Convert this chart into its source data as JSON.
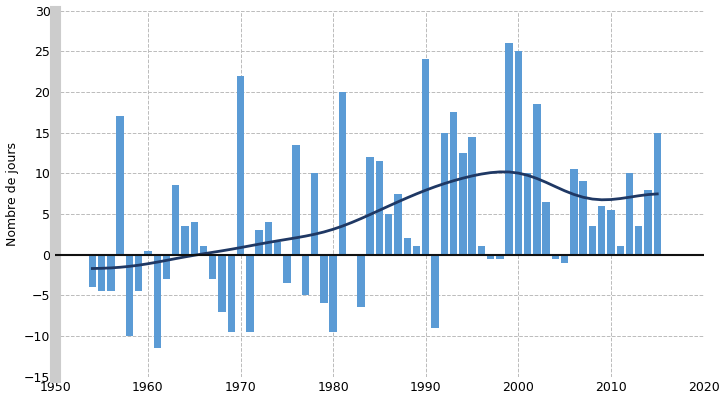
{
  "years": [
    1954,
    1955,
    1956,
    1957,
    1958,
    1959,
    1960,
    1961,
    1962,
    1963,
    1964,
    1965,
    1966,
    1967,
    1968,
    1969,
    1970,
    1971,
    1972,
    1973,
    1974,
    1975,
    1976,
    1977,
    1978,
    1979,
    1980,
    1981,
    1982,
    1983,
    1984,
    1985,
    1986,
    1987,
    1988,
    1989,
    1990,
    1991,
    1992,
    1993,
    1994,
    1995,
    1996,
    1997,
    1998,
    1999,
    2000,
    2001,
    2002,
    2003,
    2004,
    2005,
    2006,
    2007,
    2008,
    2009,
    2010,
    2011,
    2012,
    2013,
    2014,
    2015
  ],
  "values": [
    -4.0,
    -4.5,
    -4.5,
    17.0,
    -10.0,
    -4.5,
    0.5,
    -11.5,
    -3.0,
    8.5,
    3.5,
    4.0,
    1.0,
    -3.0,
    -7.0,
    -9.5,
    22.0,
    -9.5,
    3.0,
    4.0,
    1.5,
    -3.5,
    13.5,
    -5.0,
    10.0,
    -6.0,
    -9.5,
    20.0,
    0.0,
    -6.5,
    12.0,
    11.5,
    5.0,
    7.5,
    2.0,
    1.0,
    24.0,
    -9.0,
    15.0,
    17.5,
    12.5,
    14.5,
    1.0,
    -0.5,
    -0.5,
    26.0,
    25.0,
    10.0,
    18.5,
    6.5,
    -0.5,
    -1.0,
    10.5,
    9.0,
    3.5,
    6.0,
    5.5,
    1.0,
    10.0,
    3.5,
    8.0,
    15.0
  ],
  "bar_color": "#5b9bd5",
  "line_color": "#1f3864",
  "zero_line_color": "#111111",
  "ylabel": "Nombre de jours",
  "ylim": [
    -15,
    30
  ],
  "xlim": [
    1950,
    2020
  ],
  "yticks": [
    -15,
    -10,
    -5,
    0,
    5,
    10,
    15,
    20,
    25,
    30
  ],
  "xticks": [
    1950,
    1960,
    1970,
    1980,
    1990,
    2000,
    2010,
    2020
  ],
  "grid_color": "#bbbbbb",
  "background_color": "#ffffff",
  "bar_width": 0.8,
  "left_bar_color": "#cccccc",
  "ylabel_fontsize": 9,
  "tick_fontsize": 9
}
